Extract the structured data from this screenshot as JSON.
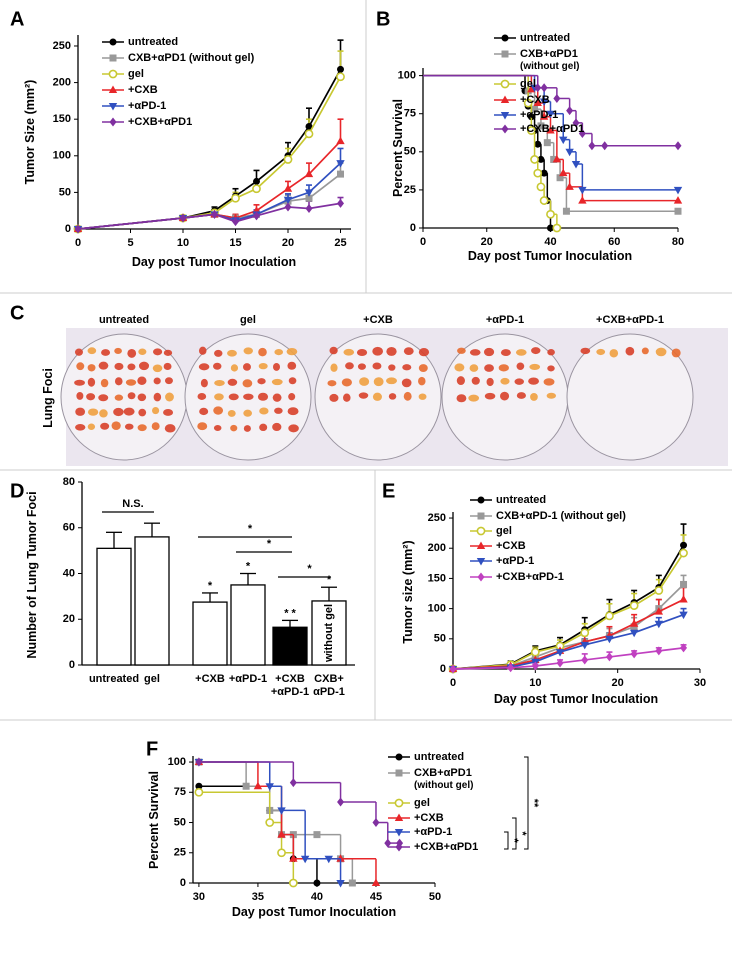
{
  "chart_data": [
    {
      "label": "A",
      "type": "line",
      "x_label": "Day post Tumor Inoculation",
      "y_label": "Tumor Size (mm²)",
      "x": [
        0,
        10,
        13,
        15,
        17,
        20,
        22,
        25
      ],
      "xlim": [
        0,
        26
      ],
      "xticks": [
        0,
        5,
        10,
        15,
        20,
        25
      ],
      "ylim": [
        0,
        265
      ],
      "yticks": [
        0,
        50,
        100,
        150,
        200,
        250
      ],
      "series": [
        {
          "name": "untreated",
          "color": "#000000",
          "marker": "circle",
          "values": [
            0,
            15,
            25,
            45,
            65,
            100,
            140,
            218
          ],
          "errors": [
            0,
            3,
            5,
            10,
            15,
            18,
            25,
            40
          ]
        },
        {
          "name": "CXB+αPD1 (without gel)",
          "color": "#999999",
          "marker": "square",
          "values": [
            0,
            15,
            20,
            15,
            20,
            38,
            42,
            75
          ],
          "errors": [
            0,
            3,
            4,
            5,
            6,
            8,
            10,
            15
          ]
        },
        {
          "name": "gel",
          "color": "#c8c832",
          "marker": "ring",
          "values": [
            0,
            15,
            22,
            42,
            55,
            95,
            130,
            208
          ],
          "errors": [
            0,
            3,
            5,
            8,
            10,
            15,
            20,
            35
          ]
        },
        {
          "name": "+CXB",
          "color": "#e8262a",
          "marker": "triangle",
          "values": [
            0,
            15,
            20,
            15,
            25,
            55,
            75,
            120
          ],
          "errors": [
            0,
            3,
            4,
            5,
            8,
            10,
            15,
            30
          ]
        },
        {
          "name": "+αPD-1",
          "color": "#3050c0",
          "marker": "triangle-down",
          "values": [
            0,
            15,
            20,
            12,
            20,
            40,
            50,
            90
          ],
          "errors": [
            0,
            3,
            4,
            5,
            6,
            8,
            10,
            20
          ]
        },
        {
          "name": "+CXB+αPD1",
          "color": "#8030a0",
          "marker": "diamond",
          "values": [
            0,
            15,
            20,
            10,
            18,
            30,
            28,
            35
          ],
          "errors": [
            0,
            3,
            4,
            4,
            6,
            10,
            10,
            8
          ]
        }
      ]
    },
    {
      "label": "B",
      "type": "survival",
      "x_label": "Day post Tumor Inoculation",
      "y_label": "Percent Survival",
      "xlim": [
        0,
        80
      ],
      "xticks": [
        0,
        20,
        40,
        60,
        80
      ],
      "ylim": [
        0,
        105
      ],
      "yticks": [
        0,
        25,
        50,
        75,
        100
      ],
      "series": [
        {
          "name": "untreated",
          "color": "#000000",
          "marker": "circle",
          "x": [
            0,
            32,
            33,
            34,
            35,
            36,
            37,
            38,
            39,
            40
          ],
          "values": [
            100,
            90,
            80,
            73,
            64,
            55,
            45,
            36,
            18,
            0
          ]
        },
        {
          "name": "CXB+αPD1 (without gel)",
          "color": "#999999",
          "marker": "square",
          "x": [
            0,
            33,
            35,
            37,
            39,
            41,
            43,
            45,
            80
          ],
          "values": [
            100,
            90,
            78,
            67,
            56,
            45,
            33,
            11,
            11
          ]
        },
        {
          "name": "gel",
          "color": "#c8c832",
          "marker": "ring",
          "x": [
            0,
            33,
            34,
            35,
            36,
            37,
            38,
            40,
            42
          ],
          "values": [
            100,
            82,
            64,
            45,
            36,
            27,
            18,
            9,
            0
          ]
        },
        {
          "name": "+CXB",
          "color": "#e8262a",
          "marker": "triangle",
          "x": [
            0,
            34,
            36,
            38,
            40,
            42,
            44,
            46,
            50,
            80
          ],
          "values": [
            100,
            91,
            82,
            73,
            64,
            45,
            36,
            27,
            18,
            18
          ]
        },
        {
          "name": "+αPD-1",
          "color": "#3050c0",
          "marker": "triangle-down",
          "x": [
            0,
            35,
            38,
            40,
            44,
            46,
            48,
            50,
            80
          ],
          "values": [
            100,
            92,
            83,
            75,
            58,
            50,
            42,
            25,
            25
          ]
        },
        {
          "name": "+CXB+αPD1",
          "color": "#8030a0",
          "marker": "diamond",
          "x": [
            0,
            36,
            38,
            42,
            46,
            48,
            50,
            53,
            57,
            80
          ],
          "values": [
            100,
            92,
            92,
            85,
            77,
            69,
            62,
            54,
            54,
            54
          ]
        }
      ]
    },
    {
      "label": "D",
      "type": "bar",
      "y_label": "Number of Lung Tumor Foci",
      "ylim": [
        0,
        80
      ],
      "yticks": [
        0,
        20,
        40,
        60,
        80
      ],
      "categories": [
        "untreated",
        "gel",
        "+CXB",
        "+αPD-1",
        "+CXB\n+αPD-1",
        "CXB+\nαPD-1"
      ],
      "values": [
        51,
        56,
        27.5,
        35,
        16.5,
        28
      ],
      "errors": [
        7,
        6,
        4,
        5,
        3,
        6
      ],
      "colors": [
        "#ffffff",
        "#ffffff",
        "#ffffff",
        "#ffffff",
        "#000000",
        "#ffffff"
      ],
      "stars": [
        null,
        null,
        "*",
        "*",
        "* *",
        "*"
      ],
      "bar_text": [
        null,
        null,
        null,
        null,
        null,
        "without gel"
      ],
      "brackets": [
        {
          "from": 0,
          "to": 1,
          "label": "N.S."
        },
        {
          "from": 2,
          "to": 4,
          "label": "*"
        },
        {
          "from": 3,
          "to": 4,
          "label": "*"
        },
        {
          "from": 4,
          "to": 5,
          "label": "*"
        }
      ]
    },
    {
      "label": "E",
      "type": "line",
      "x_label": "Day post Tumor Inoculation",
      "y_label": "Tumor size (mm²)",
      "x": [
        0,
        7,
        10,
        13,
        16,
        19,
        22,
        25,
        28
      ],
      "xlim": [
        0,
        30
      ],
      "xticks": [
        0,
        10,
        20,
        30
      ],
      "ylim": [
        0,
        260
      ],
      "yticks": [
        0,
        50,
        100,
        150,
        200,
        250
      ],
      "series": [
        {
          "name": "untreated",
          "color": "#000000",
          "marker": "circle",
          "values": [
            0,
            8,
            30,
            40,
            65,
            90,
            110,
            135,
            205
          ],
          "errors": [
            0,
            5,
            8,
            12,
            20,
            25,
            20,
            20,
            35
          ]
        },
        {
          "name": "CXB+αPD-1 (without gel)",
          "color": "#999999",
          "marker": "square",
          "values": [
            0,
            5,
            20,
            35,
            45,
            55,
            70,
            100,
            140
          ],
          "errors": [
            0,
            4,
            6,
            8,
            10,
            12,
            15,
            15,
            15
          ]
        },
        {
          "name": "gel",
          "color": "#c8c832",
          "marker": "ring",
          "values": [
            0,
            7,
            28,
            38,
            60,
            88,
            105,
            130,
            192
          ],
          "errors": [
            0,
            5,
            8,
            10,
            15,
            20,
            20,
            18,
            30
          ]
        },
        {
          "name": "+CXB",
          "color": "#e8262a",
          "marker": "triangle",
          "values": [
            0,
            5,
            15,
            30,
            45,
            55,
            75,
            95,
            115
          ],
          "errors": [
            0,
            4,
            6,
            10,
            15,
            15,
            15,
            20,
            20
          ]
        },
        {
          "name": "+αPD-1",
          "color": "#3050c0",
          "marker": "triangle-down",
          "values": [
            0,
            3,
            12,
            28,
            40,
            50,
            60,
            75,
            90
          ],
          "errors": [
            0,
            3,
            5,
            8,
            10,
            10,
            10,
            10,
            10
          ]
        },
        {
          "name": "+CXB+αPD-1",
          "color": "#c040c0",
          "marker": "diamond",
          "values": [
            0,
            2,
            5,
            10,
            15,
            20,
            25,
            30,
            35
          ],
          "errors": [
            0,
            2,
            3,
            5,
            10,
            8,
            5,
            5,
            5
          ]
        }
      ]
    },
    {
      "label": "F",
      "type": "survival",
      "x_label": "Day post Tumor Inoculation",
      "y_label": "Percent Survival",
      "xlim": [
        29.5,
        50
      ],
      "xticks": [
        30,
        35,
        40,
        45,
        50
      ],
      "ylim": [
        0,
        105
      ],
      "yticks": [
        0,
        25,
        50,
        75,
        100
      ],
      "series": [
        {
          "name": "untreated",
          "color": "#000000",
          "marker": "circle",
          "x": [
            30,
            36,
            37,
            38,
            40
          ],
          "values": [
            80,
            60,
            40,
            20,
            0
          ]
        },
        {
          "name": "CXB+αPD1 (without gel)",
          "color": "#999999",
          "marker": "square",
          "x": [
            30,
            34,
            36,
            37,
            38,
            40,
            42,
            43
          ],
          "values": [
            100,
            80,
            60,
            40,
            40,
            40,
            20,
            0
          ]
        },
        {
          "name": "gel",
          "color": "#c8c832",
          "marker": "ring",
          "x": [
            30,
            36,
            37,
            38
          ],
          "values": [
            75,
            50,
            25,
            0
          ]
        },
        {
          "name": "+CXB",
          "color": "#e8262a",
          "marker": "triangle",
          "x": [
            30,
            35,
            37,
            38,
            42,
            45
          ],
          "values": [
            100,
            80,
            40,
            20,
            20,
            0
          ]
        },
        {
          "name": "+αPD-1",
          "color": "#3050c0",
          "marker": "triangle-down",
          "x": [
            30,
            36,
            37,
            39,
            41,
            42
          ],
          "values": [
            100,
            80,
            60,
            20,
            20,
            0
          ]
        },
        {
          "name": "+CXB+αPD1",
          "color": "#8030a0",
          "marker": "diamond",
          "x": [
            30,
            38,
            42,
            45,
            46,
            47
          ],
          "values": [
            100,
            83,
            67,
            50,
            33,
            33
          ]
        }
      ],
      "brackets": [
        {
          "from": 4,
          "to": 5,
          "label": "*"
        },
        {
          "from": 3,
          "to": 5,
          "label": "*"
        },
        {
          "from": 0,
          "to": 5,
          "label": "**"
        }
      ]
    }
  ],
  "photo": {
    "label": "C",
    "side_label": "Lung Foci",
    "groups": [
      "untreated",
      "gel",
      "+CXB",
      "+αPD-1",
      "+CXB+αPD-1"
    ]
  }
}
